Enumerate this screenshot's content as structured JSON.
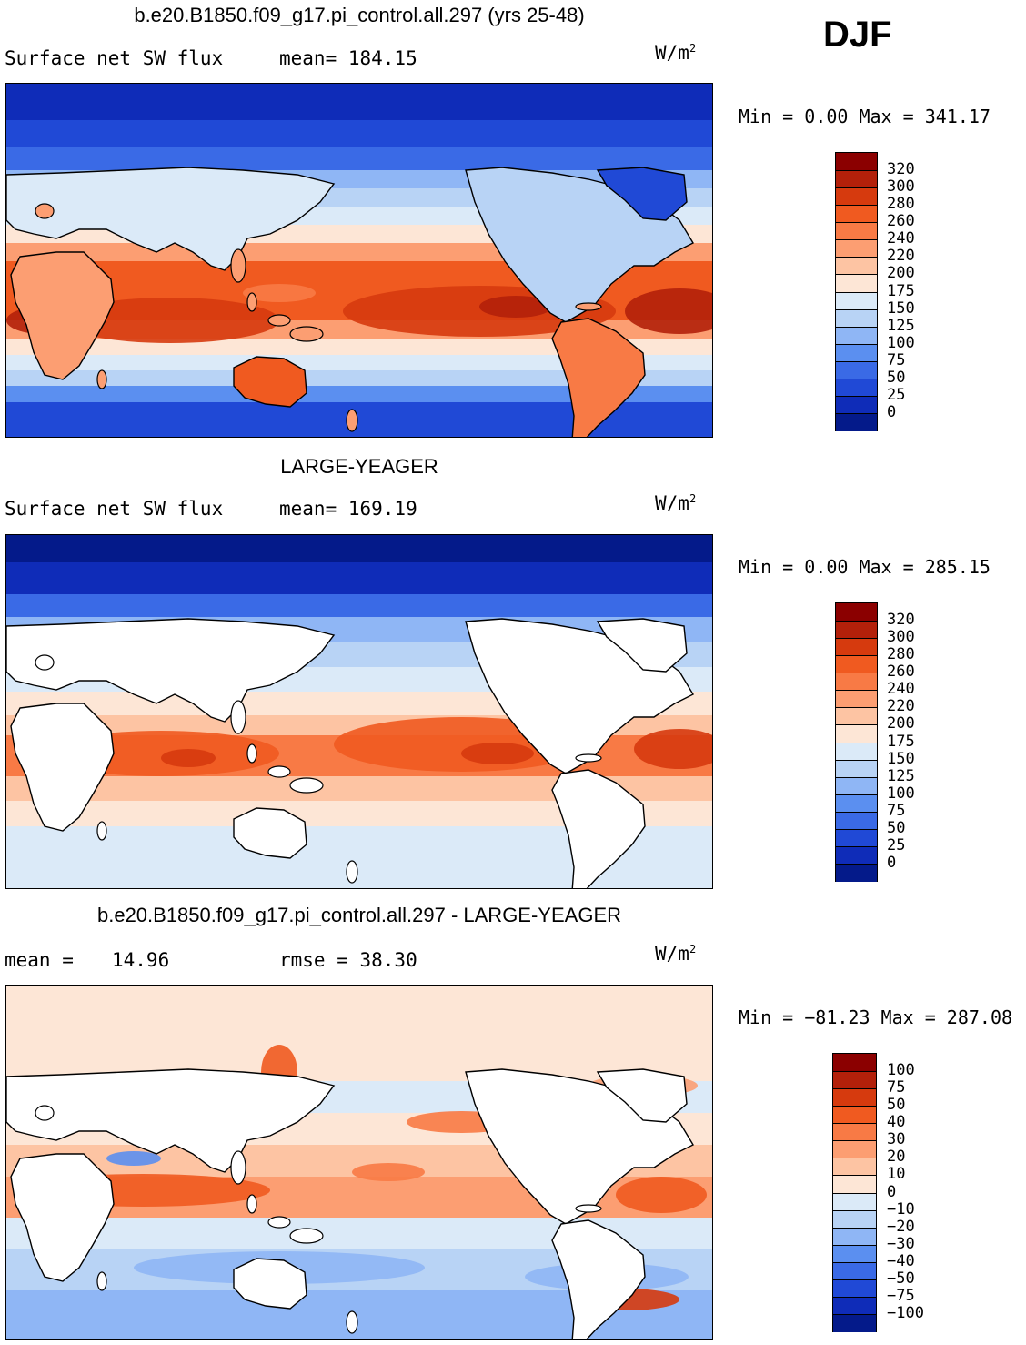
{
  "season": "DJF",
  "panels": [
    {
      "title": "b.e20.B1850.f09_g17.pi_control.all.297 (yrs 25-48)",
      "variable": "Surface net SW flux",
      "stat1": "mean=  184.15",
      "stat2": "",
      "units": "W/m",
      "units_exp": "2",
      "minmax": "Min =    0.00 Max = 341.17",
      "ticks": [
        "320",
        "300",
        "280",
        "260",
        "240",
        "220",
        "200",
        "175",
        "150",
        "125",
        "100",
        "75",
        "50",
        "25",
        "0"
      ],
      "colors": [
        "#8b0000",
        "#b3200a",
        "#d63a0e",
        "#f05a20",
        "#f87a45",
        "#fc9e72",
        "#fdc4a3",
        "#fde6d6",
        "#dbeaf8",
        "#b8d3f5",
        "#8fb6f5",
        "#5b8ff0",
        "#3a6ae6",
        "#2049d6",
        "#0f2cb8",
        "#041a8a"
      ],
      "land_filled": true
    },
    {
      "title": "LARGE-YEAGER",
      "variable": "Surface net SW flux",
      "stat1": "mean=  169.19",
      "stat2": "",
      "units": "W/m",
      "units_exp": "2",
      "minmax": "Min =    0.00 Max = 285.15",
      "ticks": [
        "320",
        "300",
        "280",
        "260",
        "240",
        "220",
        "200",
        "175",
        "150",
        "125",
        "100",
        "75",
        "50",
        "25",
        "0"
      ],
      "colors": [
        "#8b0000",
        "#b3200a",
        "#d63a0e",
        "#f05a20",
        "#f87a45",
        "#fc9e72",
        "#fdc4a3",
        "#fde6d6",
        "#dbeaf8",
        "#b8d3f5",
        "#8fb6f5",
        "#5b8ff0",
        "#3a6ae6",
        "#2049d6",
        "#0f2cb8",
        "#041a8a"
      ],
      "land_filled": false
    },
    {
      "title": "b.e20.B1850.f09_g17.pi_control.all.297 - LARGE-YEAGER",
      "variable": "mean =",
      "stat1": "14.96",
      "stat2": "rmse =   38.30",
      "units": "W/m",
      "units_exp": "2",
      "minmax": "Min = −81.23 Max = 287.08",
      "ticks": [
        "100",
        "75",
        "50",
        "40",
        "30",
        "20",
        "10",
        "0",
        "−10",
        "−20",
        "−30",
        "−40",
        "−50",
        "−75",
        "−100"
      ],
      "colors": [
        "#8b0000",
        "#b3200a",
        "#d63a0e",
        "#f05a20",
        "#f87a45",
        "#fc9e72",
        "#fdc4a3",
        "#fde6d6",
        "#dbeaf8",
        "#b8d3f5",
        "#8fb6f5",
        "#5b8ff0",
        "#3a6ae6",
        "#2049d6",
        "#0f2cb8",
        "#041a8a"
      ],
      "land_filled": false
    }
  ]
}
